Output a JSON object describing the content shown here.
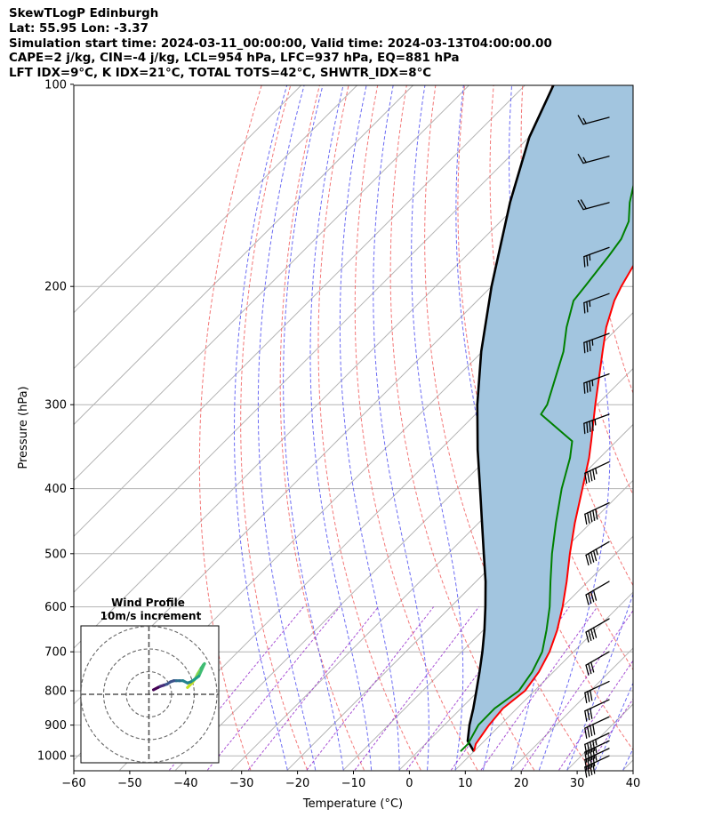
{
  "header": {
    "line1": "SkewTLogP Edinburgh",
    "line2": "Lat: 55.95   Lon: -3.37",
    "line3": "Simulation start time: 2024-03-11_00:00:00, Valid time: 2024-03-13T04:00:00.00",
    "line4": "CAPE=2 j/kg, CIN=-4 j/kg, LCL=954 hPa, LFC=937 hPa, EQ=881 hPa",
    "line5": "LFT IDX=9°C, K IDX=21°C, TOTAL TOTS=42°C, SHWTR_IDX=8°C"
  },
  "chart_data": {
    "type": "line",
    "subtype": "skew-t log-p",
    "xlabel": "Temperature (°C)",
    "ylabel": "Pressure (hPa)",
    "xlim": [
      -60,
      40
    ],
    "ylim": [
      1050,
      100
    ],
    "y_scale": "log",
    "x_ticks": [
      -60,
      -50,
      -40,
      -30,
      -20,
      -10,
      0,
      10,
      20,
      30,
      40
    ],
    "x_tick_labels": [
      "−60",
      "−50",
      "−40",
      "−30",
      "−20",
      "−10",
      "0",
      "10",
      "20",
      "30",
      "40"
    ],
    "y_ticks": [
      1000,
      900,
      800,
      700,
      600,
      500,
      400,
      300,
      200,
      100
    ],
    "grid": true,
    "colors": {
      "temperature": "#ff0000",
      "dewpoint": "#008000",
      "parcel": "#000000",
      "cape_fill": "#a2c5df",
      "dry_adiabat": "#f26868",
      "moist_adiabat": "#5b5bf2",
      "mixing_ratio": "#9933cc",
      "isotherm": "#b4b4b4"
    },
    "series": [
      {
        "role": "temperature",
        "points": [
          {
            "p": 985,
            "t": 10.0
          },
          {
            "p": 960,
            "t": 9.0
          },
          {
            "p": 900,
            "t": 8.0
          },
          {
            "p": 850,
            "t": 7.5
          },
          {
            "p": 800,
            "t": 8.3
          },
          {
            "p": 750,
            "t": 7.4
          },
          {
            "p": 700,
            "t": 5.7
          },
          {
            "p": 650,
            "t": 3.2
          },
          {
            "p": 600,
            "t": 0.0
          },
          {
            "p": 550,
            "t": -3.8
          },
          {
            "p": 500,
            "t": -8.2
          },
          {
            "p": 450,
            "t": -12.8
          },
          {
            "p": 400,
            "t": -17.6
          },
          {
            "p": 360,
            "t": -21.9
          },
          {
            "p": 340,
            "t": -24.5
          },
          {
            "p": 300,
            "t": -30.3
          },
          {
            "p": 250,
            "t": -38.5
          },
          {
            "p": 230,
            "t": -42.2
          },
          {
            "p": 210,
            "t": -45.5
          },
          {
            "p": 200,
            "t": -46.8
          },
          {
            "p": 180,
            "t": -49.1
          },
          {
            "p": 170,
            "t": -51.4
          },
          {
            "p": 160,
            "t": -53.8
          },
          {
            "p": 150,
            "t": -55.7
          },
          {
            "p": 140,
            "t": -57.7
          },
          {
            "p": 130,
            "t": -59.2
          },
          {
            "p": 120,
            "t": -61.1
          },
          {
            "p": 110,
            "t": -63.3
          },
          {
            "p": 105,
            "t": -64.2
          },
          {
            "p": 100,
            "t": -64.8
          }
        ]
      },
      {
        "role": "dewpoint",
        "points": [
          {
            "p": 985,
            "t": 7.6
          },
          {
            "p": 960,
            "t": 7.6
          },
          {
            "p": 900,
            "t": 6.1
          },
          {
            "p": 850,
            "t": 6.0
          },
          {
            "p": 800,
            "t": 7.2
          },
          {
            "p": 750,
            "t": 6.2
          },
          {
            "p": 700,
            "t": 4.4
          },
          {
            "p": 650,
            "t": 1.3
          },
          {
            "p": 600,
            "t": -2.3
          },
          {
            "p": 550,
            "t": -6.7
          },
          {
            "p": 500,
            "t": -11.4
          },
          {
            "p": 450,
            "t": -16.2
          },
          {
            "p": 400,
            "t": -21.3
          },
          {
            "p": 360,
            "t": -25.3
          },
          {
            "p": 340,
            "t": -27.9
          },
          {
            "p": 310,
            "t": -38.3
          },
          {
            "p": 300,
            "t": -38.9
          },
          {
            "p": 250,
            "t": -45.5
          },
          {
            "p": 230,
            "t": -49.3
          },
          {
            "p": 210,
            "t": -52.8
          },
          {
            "p": 200,
            "t": -53.3
          },
          {
            "p": 180,
            "t": -54.5
          },
          {
            "p": 170,
            "t": -55.3
          },
          {
            "p": 160,
            "t": -57.1
          },
          {
            "p": 150,
            "t": -60.3
          },
          {
            "p": 140,
            "t": -63.1
          },
          {
            "p": 130,
            "t": -64.9
          },
          {
            "p": 120,
            "t": -66.4
          },
          {
            "p": 110,
            "t": -68.7
          },
          {
            "p": 100,
            "t": -70.9
          }
        ]
      },
      {
        "role": "parcel",
        "points": [
          {
            "p": 985,
            "t": 10.0
          },
          {
            "p": 950,
            "t": 7.0
          },
          {
            "p": 900,
            "t": 4.5
          },
          {
            "p": 850,
            "t": 2.2
          },
          {
            "p": 800,
            "t": -0.4
          },
          {
            "p": 750,
            "t": -3.2
          },
          {
            "p": 700,
            "t": -6.3
          },
          {
            "p": 650,
            "t": -9.8
          },
          {
            "p": 600,
            "t": -13.8
          },
          {
            "p": 550,
            "t": -18.3
          },
          {
            "p": 500,
            "t": -23.6
          },
          {
            "p": 450,
            "t": -29.4
          },
          {
            "p": 400,
            "t": -35.9
          },
          {
            "p": 350,
            "t": -43.3
          },
          {
            "p": 300,
            "t": -51.4
          },
          {
            "p": 250,
            "t": -60.2
          },
          {
            "p": 200,
            "t": -70.0
          },
          {
            "p": 150,
            "t": -81.7
          },
          {
            "p": 120,
            "t": -89.9
          },
          {
            "p": 100,
            "t": -95.0
          }
        ]
      }
    ],
    "wind_barbs": [
      {
        "p": 1000,
        "speed_kt": 40,
        "dir_deg": 245
      },
      {
        "p": 975,
        "speed_kt": 45,
        "dir_deg": 245
      },
      {
        "p": 950,
        "speed_kt": 45,
        "dir_deg": 245
      },
      {
        "p": 925,
        "speed_kt": 45,
        "dir_deg": 245
      },
      {
        "p": 875,
        "speed_kt": 40,
        "dir_deg": 245
      },
      {
        "p": 825,
        "speed_kt": 30,
        "dir_deg": 245
      },
      {
        "p": 775,
        "speed_kt": 30,
        "dir_deg": 245
      },
      {
        "p": 700,
        "speed_kt": 30,
        "dir_deg": 240
      },
      {
        "p": 625,
        "speed_kt": 40,
        "dir_deg": 240
      },
      {
        "p": 550,
        "speed_kt": 40,
        "dir_deg": 240
      },
      {
        "p": 480,
        "speed_kt": 45,
        "dir_deg": 240
      },
      {
        "p": 420,
        "speed_kt": 50,
        "dir_deg": 245
      },
      {
        "p": 365,
        "speed_kt": 45,
        "dir_deg": 245
      },
      {
        "p": 310,
        "speed_kt": 45,
        "dir_deg": 250
      },
      {
        "p": 270,
        "speed_kt": 35,
        "dir_deg": 250
      },
      {
        "p": 235,
        "speed_kt": 35,
        "dir_deg": 250
      },
      {
        "p": 205,
        "speed_kt": 25,
        "dir_deg": 250
      },
      {
        "p": 175,
        "speed_kt": 25,
        "dir_deg": 250
      },
      {
        "p": 150,
        "speed_kt": 20,
        "dir_deg": 255
      },
      {
        "p": 128,
        "speed_kt": 15,
        "dir_deg": 255
      },
      {
        "p": 112,
        "speed_kt": 15,
        "dir_deg": 255
      }
    ],
    "hodograph": {
      "title": "Wind Profile",
      "subtitle": "10m/s increment",
      "range_ms": 30,
      "ring_step_ms": 10,
      "colormap": "viridis",
      "points": [
        {
          "u": 17,
          "v": 3
        },
        {
          "u": 18,
          "v": 4
        },
        {
          "u": 19,
          "v": 5
        },
        {
          "u": 20.5,
          "v": 7
        },
        {
          "u": 21.5,
          "v": 9
        },
        {
          "u": 23,
          "v": 11.5
        },
        {
          "u": 24,
          "v": 13
        },
        {
          "u": 24.5,
          "v": 13.5
        },
        {
          "u": 22,
          "v": 8
        },
        {
          "u": 20,
          "v": 6.5
        },
        {
          "u": 18.5,
          "v": 5.5
        },
        {
          "u": 17,
          "v": 5
        },
        {
          "u": 15,
          "v": 6
        },
        {
          "u": 13.5,
          "v": 6
        },
        {
          "u": 12,
          "v": 6
        },
        {
          "u": 11,
          "v": 6
        },
        {
          "u": 9.5,
          "v": 5.5
        },
        {
          "u": 8,
          "v": 4.5
        },
        {
          "u": 6.5,
          "v": 4
        },
        {
          "u": 5,
          "v": 3.5
        },
        {
          "u": 4,
          "v": 3
        },
        {
          "u": 3,
          "v": 2.5
        },
        {
          "u": 2,
          "v": 2
        }
      ]
    }
  }
}
